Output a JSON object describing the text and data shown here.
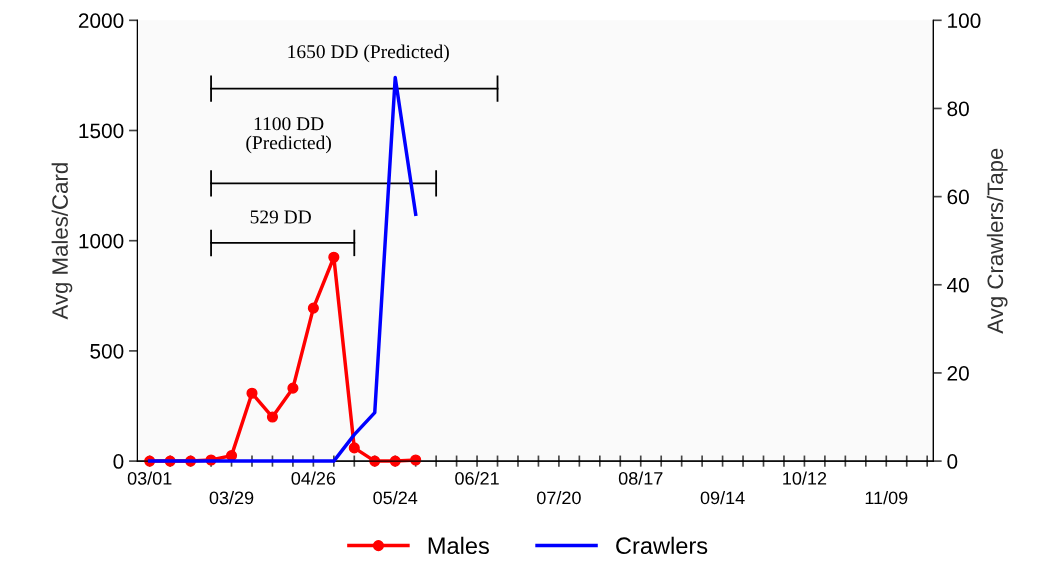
{
  "chart_data": {
    "type": "line",
    "categories": [
      "03/01",
      null,
      null,
      null,
      "03/29",
      null,
      null,
      null,
      "04/26",
      null,
      null,
      null,
      "05/24",
      null,
      null,
      null,
      "06/21",
      null,
      null,
      null,
      "07/20",
      null,
      null,
      null,
      "08/17",
      null,
      null,
      null,
      "09/14",
      null,
      null,
      null,
      "10/12",
      null,
      null,
      null,
      "11/09",
      null,
      null
    ],
    "series": [
      {
        "name": "Males",
        "color": "#ff0000",
        "marker": "circle",
        "values": [
          0,
          0,
          0,
          5,
          25,
          308,
          200,
          331,
          694,
          925,
          60,
          0,
          0,
          5,
          null,
          null,
          null,
          null,
          null,
          null,
          null,
          null,
          null,
          null,
          null,
          null,
          null,
          null,
          null,
          null,
          null,
          null,
          null,
          null,
          null,
          null,
          null,
          null,
          null
        ]
      },
      {
        "name": "Crawlers",
        "color": "#0000ff",
        "marker": "none",
        "axis": "y2",
        "values": [
          0,
          0,
          0,
          0,
          0,
          0,
          0,
          0,
          0,
          0,
          6,
          11,
          87,
          56,
          null,
          null,
          null,
          null,
          null,
          null,
          null,
          null,
          null,
          null,
          null,
          null,
          null,
          null,
          null,
          null,
          null,
          null,
          null,
          null,
          null,
          null,
          null,
          null,
          null
        ]
      },
      {
        "color": "#000000",
        "marker": "none",
        "values": [
          null,
          null,
          null,
          990,
          990,
          990,
          990,
          990,
          990,
          990,
          990,
          null,
          null,
          null,
          null,
          null,
          null,
          null,
          null,
          null,
          null,
          null,
          null,
          null,
          null,
          null,
          null,
          null,
          null,
          null,
          null,
          null,
          null,
          null,
          null,
          null,
          null,
          null,
          null
        ],
        "errors": [
          null,
          null,
          null,
          60,
          null,
          null,
          null,
          null,
          null,
          null,
          60,
          null,
          null,
          null,
          null,
          null,
          null,
          null,
          null,
          null,
          null,
          null,
          null,
          null,
          null,
          null,
          null,
          null,
          null,
          null,
          null,
          null,
          null,
          null,
          null,
          null,
          null,
          null,
          null
        ]
      },
      {
        "color": "#000000",
        "marker": "none",
        "values": [
          null,
          null,
          null,
          1260,
          1260,
          1260,
          1260,
          1260,
          1260,
          1260,
          1260,
          1260,
          1260,
          1260,
          1260,
          null,
          null,
          null,
          null,
          null,
          null,
          null,
          null,
          null,
          null,
          null,
          null,
          null,
          null,
          null,
          null,
          null,
          null,
          null,
          null,
          null,
          null,
          null,
          null
        ],
        "errors": [
          null,
          null,
          null,
          60,
          null,
          null,
          null,
          null,
          null,
          null,
          null,
          null,
          null,
          null,
          60,
          null,
          null,
          null,
          null,
          null,
          null,
          null,
          null,
          null,
          null,
          null,
          null,
          null,
          null,
          null,
          null,
          null,
          null,
          null,
          null,
          null,
          null,
          null,
          null
        ]
      },
      {
        "color": "#000000",
        "marker": "none",
        "values": [
          null,
          null,
          null,
          1690,
          1690,
          1690,
          1690,
          1690,
          1690,
          1690,
          1690,
          1690,
          1690,
          1690,
          1690,
          1690,
          1690,
          1690,
          null,
          null,
          null,
          null,
          null,
          null,
          null,
          null,
          null,
          null,
          null,
          null,
          null,
          null,
          null,
          null,
          null,
          null,
          null,
          null,
          null
        ],
        "errors": [
          null,
          null,
          null,
          60,
          null,
          null,
          null,
          null,
          null,
          null,
          null,
          null,
          null,
          null,
          null,
          null,
          null,
          60,
          null,
          null,
          null,
          null,
          null,
          null,
          null,
          null,
          null,
          null,
          null,
          null,
          null,
          null,
          null,
          null,
          null,
          null,
          null,
          null,
          null
        ]
      }
    ],
    "annotations": [
      "529 DD",
      "1100 DD\n(Predicted)",
      "1650 DD (Predicted)"
    ],
    "ylabel": "Avg Males/Card",
    "y2label": "Avg Crawlers/Tape",
    "ylim": [
      0,
      2000
    ],
    "yticks": [
      0,
      500,
      1000,
      1500,
      2000
    ],
    "y2lim": [
      0,
      100
    ],
    "y2ticks": [
      0,
      20,
      40,
      60,
      80,
      100
    ],
    "grid": false,
    "legend": "bottom"
  }
}
